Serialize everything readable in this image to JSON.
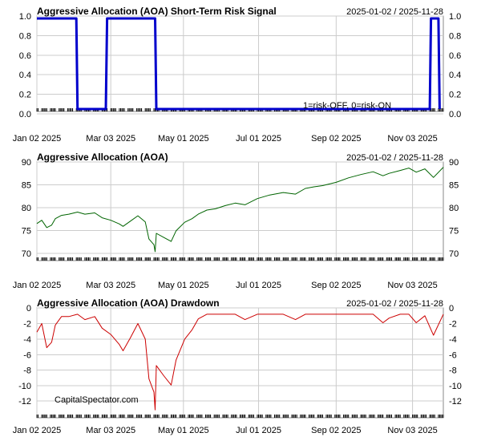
{
  "chart_data": [
    {
      "type": "line",
      "title": "Aggressive Allocation (AOA) Short-Term Risk Signal",
      "date_range": "2025-01-02 / 2025-11-28",
      "ylim": [
        0,
        1
      ],
      "yticks": [
        "1.0",
        "0.8",
        "0.6",
        "0.4",
        "0.2",
        "0.0"
      ],
      "x_tick_labels": [
        "Jan 02 2025",
        "Mar 03 2025",
        "May 01 2025",
        "Jul 01 2025",
        "Sep 02 2025",
        "Nov 03 2025"
      ],
      "annotation": "1=risk-OFF, 0=risk-ON",
      "grid": true,
      "series": [
        {
          "color": "#0000cc",
          "x": [
            "2025-01-02",
            "2025-02-03",
            "2025-02-04",
            "2025-02-27",
            "2025-02-28",
            "2025-04-08",
            "2025-04-09",
            "2025-11-17",
            "2025-11-18",
            "2025-11-24",
            "2025-11-25"
          ],
          "values": [
            1,
            1,
            0,
            0,
            1,
            1,
            0,
            0,
            1,
            1,
            0
          ]
        }
      ]
    },
    {
      "type": "line",
      "title": "Aggressive Allocation (AOA)",
      "date_range": "2025-01-02 / 2025-11-28",
      "ylim": [
        67.5,
        90.5
      ],
      "yticks": [
        "90",
        "85",
        "80",
        "75",
        "70"
      ],
      "x_tick_labels": [
        "Jan 02 2025",
        "Mar 03 2025",
        "May 01 2025",
        "Jul 01 2025",
        "Sep 02 2025",
        "Nov 03 2025"
      ],
      "grid": true,
      "series": [
        {
          "color": "#006400",
          "x": [
            "2025-01-02",
            "2025-01-06",
            "2025-01-10",
            "2025-01-14",
            "2025-01-17",
            "2025-01-22",
            "2025-01-28",
            "2025-02-04",
            "2025-02-10",
            "2025-02-18",
            "2025-02-24",
            "2025-03-03",
            "2025-03-10",
            "2025-03-13",
            "2025-03-19",
            "2025-03-25",
            "2025-03-31",
            "2025-04-03",
            "2025-04-07",
            "2025-04-08",
            "2025-04-09",
            "2025-04-15",
            "2025-04-21",
            "2025-04-25",
            "2025-05-02",
            "2025-05-08",
            "2025-05-13",
            "2025-05-20",
            "2025-05-27",
            "2025-06-04",
            "2025-06-12",
            "2025-06-20",
            "2025-06-30",
            "2025-07-10",
            "2025-07-21",
            "2025-07-31",
            "2025-08-08",
            "2025-08-15",
            "2025-08-22",
            "2025-09-02",
            "2025-09-12",
            "2025-09-22",
            "2025-10-02",
            "2025-10-10",
            "2025-10-15",
            "2025-10-24",
            "2025-10-31",
            "2025-11-06",
            "2025-11-13",
            "2025-11-20",
            "2025-11-28"
          ],
          "values": [
            76.0,
            76.8,
            75.0,
            75.6,
            77.2,
            78.0,
            78.3,
            78.8,
            78.3,
            78.6,
            77.4,
            76.8,
            75.9,
            75.3,
            76.6,
            77.9,
            76.4,
            72.2,
            70.8,
            69.1,
            73.6,
            72.6,
            71.6,
            74.2,
            76.3,
            77.2,
            78.3,
            79.3,
            79.6,
            80.4,
            81.0,
            80.6,
            82.1,
            83.0,
            83.6,
            83.2,
            84.6,
            85.0,
            85.3,
            86.1,
            87.2,
            88.0,
            88.7,
            87.7,
            88.3,
            89.0,
            89.6,
            88.6,
            89.4,
            87.3,
            89.8
          ]
        }
      ]
    },
    {
      "type": "area",
      "title": "Aggressive Allocation (AOA) Drawdown",
      "date_range": "2025-01-02 / 2025-11-28",
      "ylim": [
        -13,
        0.5
      ],
      "yticks": [
        "0",
        "-2",
        "-4",
        "-6",
        "-8",
        "-10",
        "-12"
      ],
      "x_tick_labels": [
        "Jan 02 2025",
        "Mar 03 2025",
        "May 01 2025",
        "Jul 01 2025",
        "Sep 02 2025",
        "Nov 03 2025"
      ],
      "annotation": "CapitalSpectator.com",
      "grid": true,
      "series": [
        {
          "color": "#cc0000",
          "x": [
            "2025-01-02",
            "2025-01-06",
            "2025-01-10",
            "2025-01-14",
            "2025-01-17",
            "2025-01-22",
            "2025-01-28",
            "2025-02-04",
            "2025-02-10",
            "2025-02-18",
            "2025-02-24",
            "2025-03-03",
            "2025-03-10",
            "2025-03-13",
            "2025-03-19",
            "2025-03-25",
            "2025-03-31",
            "2025-04-03",
            "2025-04-07",
            "2025-04-08",
            "2025-04-09",
            "2025-04-15",
            "2025-04-21",
            "2025-04-25",
            "2025-05-02",
            "2025-05-08",
            "2025-05-13",
            "2025-05-20",
            "2025-05-27",
            "2025-06-04",
            "2025-06-12",
            "2025-06-20",
            "2025-06-30",
            "2025-07-10",
            "2025-07-21",
            "2025-07-31",
            "2025-08-08",
            "2025-08-15",
            "2025-08-22",
            "2025-09-02",
            "2025-09-12",
            "2025-09-22",
            "2025-10-02",
            "2025-10-10",
            "2025-10-15",
            "2025-10-24",
            "2025-10-31",
            "2025-11-06",
            "2025-11-13",
            "2025-11-20",
            "2025-11-28"
          ],
          "values": [
            -2.3,
            -1.2,
            -4.3,
            -3.6,
            -1.4,
            -0.3,
            -0.3,
            0,
            -0.7,
            -0.3,
            -1.8,
            -2.6,
            -3.9,
            -4.7,
            -3.0,
            -1.2,
            -3.2,
            -8.3,
            -10.0,
            -12.3,
            -6.6,
            -7.9,
            -9.1,
            -5.9,
            -3.2,
            -2.0,
            -0.6,
            0,
            0,
            0,
            0,
            -0.7,
            0,
            0,
            0,
            -0.7,
            0,
            0,
            0,
            0,
            0,
            0,
            0,
            -1.1,
            -0.5,
            0,
            0,
            -1.1,
            -0.2,
            -2.7,
            0
          ]
        }
      ]
    }
  ]
}
